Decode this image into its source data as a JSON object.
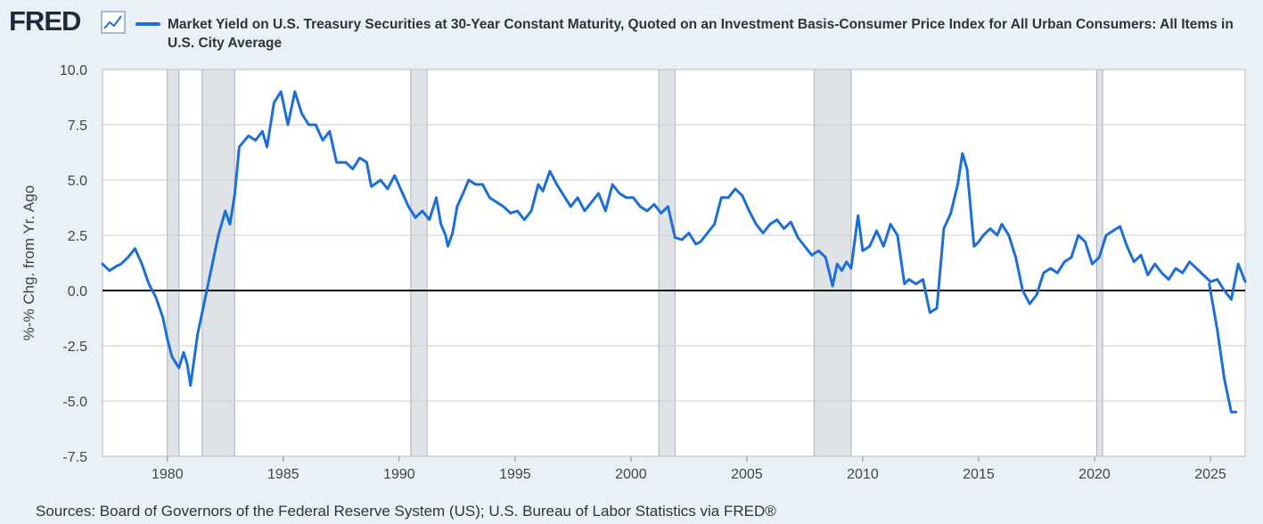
{
  "header": {
    "logo_text": "FRED",
    "legend_title": "Market Yield on U.S. Treasury Securities at 30-Year Constant Maturity, Quoted on an Investment Basis-Consumer Price Index for All Urban Consumers: All Items in U.S. City Average"
  },
  "footer": {
    "source": "Sources: Board of Governors of the Federal Reserve System (US); U.S. Bureau of Labor Statistics via FRED®"
  },
  "colors": {
    "line": "#1c6fd6",
    "recession": "#dfe3e8",
    "grid": "#cccccc",
    "background": "#e9f0f8"
  },
  "chart_data": {
    "type": "line",
    "ylabel": "%-% Chg. from Yr. Ago",
    "xlim": [
      1977.2,
      2026.5
    ],
    "ylim": [
      -7.5,
      10.0
    ],
    "x_ticks": [
      1980,
      1985,
      1990,
      1995,
      2000,
      2005,
      2010,
      2015,
      2020,
      2025
    ],
    "y_ticks": [
      -7.5,
      -5.0,
      -2.5,
      0.0,
      2.5,
      5.0,
      7.5,
      10.0
    ],
    "y_tick_labels": [
      "-7.5",
      "-5.0",
      "-2.5",
      "0.0",
      "2.5",
      "5.0",
      "7.5",
      "10.0"
    ],
    "zero_line": true,
    "grid": true,
    "recessions": [
      [
        1980.0,
        1980.5
      ],
      [
        1981.5,
        1982.9
      ],
      [
        1990.5,
        1991.2
      ],
      [
        2001.2,
        2001.9
      ],
      [
        2007.9,
        2009.5
      ],
      [
        2020.1,
        2020.35
      ]
    ],
    "series": [
      {
        "name": "Market Yield on U.S. Treasury Securities at 30-Year Constant Maturity, Quoted on an Investment Basis-Consumer Price Index for All Urban Consumers: All Items in U.S. City Average",
        "segments": [
          [
            [
              1977.2,
              1.2
            ],
            [
              1977.5,
              0.9
            ],
            [
              1977.8,
              1.1
            ],
            [
              1978.0,
              1.2
            ],
            [
              1978.3,
              1.5
            ],
            [
              1978.6,
              1.9
            ],
            [
              1978.9,
              1.2
            ],
            [
              1979.2,
              0.3
            ],
            [
              1979.5,
              -0.3
            ],
            [
              1979.8,
              -1.2
            ],
            [
              1980.0,
              -2.2
            ],
            [
              1980.2,
              -3.0
            ],
            [
              1980.5,
              -3.5
            ],
            [
              1980.7,
              -2.8
            ],
            [
              1980.85,
              -3.3
            ],
            [
              1981.0,
              -4.3
            ],
            [
              1981.3,
              -2.0
            ],
            [
              1981.6,
              -0.5
            ],
            [
              1981.9,
              1.0
            ],
            [
              1982.2,
              2.5
            ],
            [
              1982.5,
              3.6
            ],
            [
              1982.7,
              3.0
            ],
            [
              1982.9,
              4.3
            ],
            [
              1983.1,
              6.5
            ],
            [
              1983.5,
              7.0
            ],
            [
              1983.8,
              6.8
            ],
            [
              1984.1,
              7.2
            ],
            [
              1984.3,
              6.5
            ],
            [
              1984.6,
              8.5
            ],
            [
              1984.9,
              9.0
            ],
            [
              1985.2,
              7.5
            ],
            [
              1985.5,
              9.0
            ],
            [
              1985.8,
              8.0
            ],
            [
              1986.1,
              7.5
            ],
            [
              1986.4,
              7.5
            ],
            [
              1986.7,
              6.8
            ],
            [
              1987.0,
              7.2
            ],
            [
              1987.3,
              5.8
            ],
            [
              1987.7,
              5.8
            ],
            [
              1988.0,
              5.5
            ],
            [
              1988.3,
              6.0
            ],
            [
              1988.6,
              5.8
            ],
            [
              1988.8,
              4.7
            ],
            [
              1989.2,
              5.0
            ],
            [
              1989.5,
              4.6
            ],
            [
              1989.8,
              5.2
            ],
            [
              1990.1,
              4.5
            ],
            [
              1990.4,
              3.8
            ],
            [
              1990.7,
              3.3
            ],
            [
              1991.0,
              3.6
            ],
            [
              1991.3,
              3.2
            ],
            [
              1991.6,
              4.2
            ],
            [
              1991.8,
              3.0
            ],
            [
              1992.0,
              2.5
            ],
            [
              1992.1,
              2.0
            ],
            [
              1992.3,
              2.6
            ],
            [
              1992.5,
              3.8
            ],
            [
              1992.8,
              4.5
            ],
            [
              1993.0,
              5.0
            ],
            [
              1993.3,
              4.8
            ],
            [
              1993.6,
              4.8
            ],
            [
              1993.9,
              4.2
            ],
            [
              1994.2,
              4.0
            ],
            [
              1994.5,
              3.8
            ],
            [
              1994.8,
              3.5
            ],
            [
              1995.1,
              3.6
            ],
            [
              1995.4,
              3.2
            ],
            [
              1995.7,
              3.6
            ],
            [
              1996.0,
              4.8
            ],
            [
              1996.2,
              4.5
            ],
            [
              1996.5,
              5.4
            ],
            [
              1996.8,
              4.8
            ],
            [
              1997.1,
              4.3
            ],
            [
              1997.4,
              3.8
            ],
            [
              1997.7,
              4.2
            ],
            [
              1998.0,
              3.6
            ],
            [
              1998.3,
              4.0
            ],
            [
              1998.6,
              4.4
            ],
            [
              1998.9,
              3.6
            ],
            [
              1999.2,
              4.8
            ],
            [
              1999.5,
              4.4
            ],
            [
              1999.8,
              4.2
            ],
            [
              2000.1,
              4.2
            ],
            [
              2000.4,
              3.8
            ],
            [
              2000.7,
              3.6
            ],
            [
              2001.0,
              3.9
            ],
            [
              2001.3,
              3.5
            ],
            [
              2001.6,
              3.8
            ],
            [
              2001.9,
              2.4
            ],
            [
              2002.2,
              2.3
            ],
            [
              2002.5,
              2.6
            ],
            [
              2002.8,
              2.1
            ],
            [
              2003.0,
              2.2
            ],
            [
              2003.3,
              2.6
            ],
            [
              2003.6,
              3.0
            ],
            [
              2003.9,
              4.2
            ],
            [
              2004.2,
              4.2
            ],
            [
              2004.5,
              4.6
            ],
            [
              2004.8,
              4.3
            ],
            [
              2005.1,
              3.6
            ],
            [
              2005.4,
              3.0
            ],
            [
              2005.7,
              2.6
            ],
            [
              2006.0,
              3.0
            ],
            [
              2006.3,
              3.2
            ],
            [
              2006.6,
              2.8
            ],
            [
              2006.9,
              3.1
            ],
            [
              2007.2,
              2.4
            ],
            [
              2007.5,
              2.0
            ],
            [
              2007.8,
              1.6
            ],
            [
              2008.1,
              1.8
            ],
            [
              2008.4,
              1.5
            ],
            [
              2008.7,
              0.2
            ],
            [
              2008.9,
              1.2
            ],
            [
              2009.1,
              0.9
            ],
            [
              2009.3,
              1.3
            ],
            [
              2009.5,
              1.0
            ],
            [
              2009.8,
              3.4
            ],
            [
              2010.0,
              1.8
            ],
            [
              2010.3,
              2.0
            ],
            [
              2010.6,
              2.7
            ],
            [
              2010.9,
              2.0
            ],
            [
              2011.2,
              3.0
            ],
            [
              2011.5,
              2.5
            ],
            [
              2011.8,
              0.3
            ],
            [
              2012.0,
              0.5
            ],
            [
              2012.3,
              0.3
            ],
            [
              2012.6,
              0.5
            ],
            [
              2012.9,
              -1.0
            ],
            [
              2013.2,
              -0.8
            ],
            [
              2013.5,
              2.8
            ],
            [
              2013.8,
              3.5
            ],
            [
              2014.1,
              4.8
            ],
            [
              2014.3,
              6.2
            ],
            [
              2014.5,
              5.5
            ],
            [
              2014.8,
              2.0
            ],
            [
              2015.0,
              2.2
            ],
            [
              2015.2,
              2.5
            ],
            [
              2015.5,
              2.8
            ],
            [
              2015.8,
              2.5
            ],
            [
              2016.0,
              3.0
            ],
            [
              2016.3,
              2.5
            ],
            [
              2016.6,
              1.5
            ],
            [
              2016.9,
              0.0
            ],
            [
              2017.2,
              -0.6
            ],
            [
              2017.5,
              -0.2
            ],
            [
              2017.8,
              0.8
            ],
            [
              2018.1,
              1.0
            ],
            [
              2018.4,
              0.8
            ],
            [
              2018.7,
              1.3
            ],
            [
              2019.0,
              1.5
            ],
            [
              2019.3,
              2.5
            ],
            [
              2019.6,
              2.2
            ],
            [
              2019.9,
              1.2
            ],
            [
              2020.2,
              1.5
            ],
            [
              2020.5,
              2.5
            ],
            [
              2020.8,
              2.7
            ],
            [
              2021.1,
              2.9
            ],
            [
              2021.4,
              2.0
            ],
            [
              2021.7,
              1.3
            ],
            [
              2022.0,
              1.6
            ],
            [
              2022.3,
              0.7
            ],
            [
              2022.6,
              1.2
            ],
            [
              2022.9,
              0.8
            ],
            [
              2023.2,
              0.5
            ],
            [
              2023.5,
              1.0
            ],
            [
              2023.8,
              0.8
            ],
            [
              2024.1,
              1.3
            ],
            [
              2024.4,
              1.0
            ],
            [
              2024.7,
              0.7
            ],
            [
              2025.0,
              0.4
            ],
            [
              2025.3,
              0.5
            ],
            [
              2025.6,
              0.0
            ],
            [
              2025.9,
              -0.4
            ],
            [
              2026.2,
              1.2
            ],
            [
              2026.5,
              0.4
            ]
          ],
          [
            [
              2024.95,
              0.3
            ],
            [
              2025.3,
              -1.8
            ],
            [
              2025.6,
              -4.0
            ],
            [
              2025.9,
              -5.5
            ],
            [
              2026.1,
              -5.5
            ]
          ]
        ]
      }
    ]
  }
}
